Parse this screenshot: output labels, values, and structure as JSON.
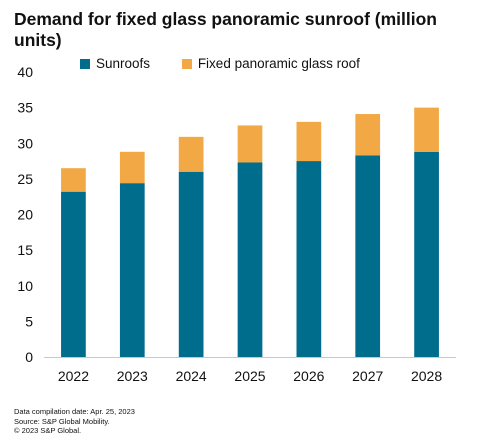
{
  "chart_data": {
    "type": "bar",
    "stacked": true,
    "title": "Demand for fixed glass panoramic sunroof (million units)",
    "categories": [
      "2022",
      "2023",
      "2024",
      "2025",
      "2026",
      "2027",
      "2028"
    ],
    "series": [
      {
        "name": "Sunroofs",
        "color": "#006D8C",
        "values": [
          23.2,
          24.4,
          26.0,
          27.3,
          27.5,
          28.3,
          28.8
        ]
      },
      {
        "name": "Fixed panoramic glass roof",
        "color": "#F2A945",
        "values": [
          3.3,
          4.4,
          4.9,
          5.2,
          5.5,
          5.8,
          6.2
        ]
      }
    ],
    "ylim": [
      0,
      40
    ],
    "yticks": [
      0,
      5,
      10,
      15,
      20,
      25,
      30,
      35,
      40
    ],
    "grid": false,
    "legend_position": "top"
  },
  "footer": {
    "line1": "Data compilation date: Apr. 25, 2023",
    "line2": "Source: S&P Global Mobility.",
    "line3": "© 2023 S&P Global."
  }
}
